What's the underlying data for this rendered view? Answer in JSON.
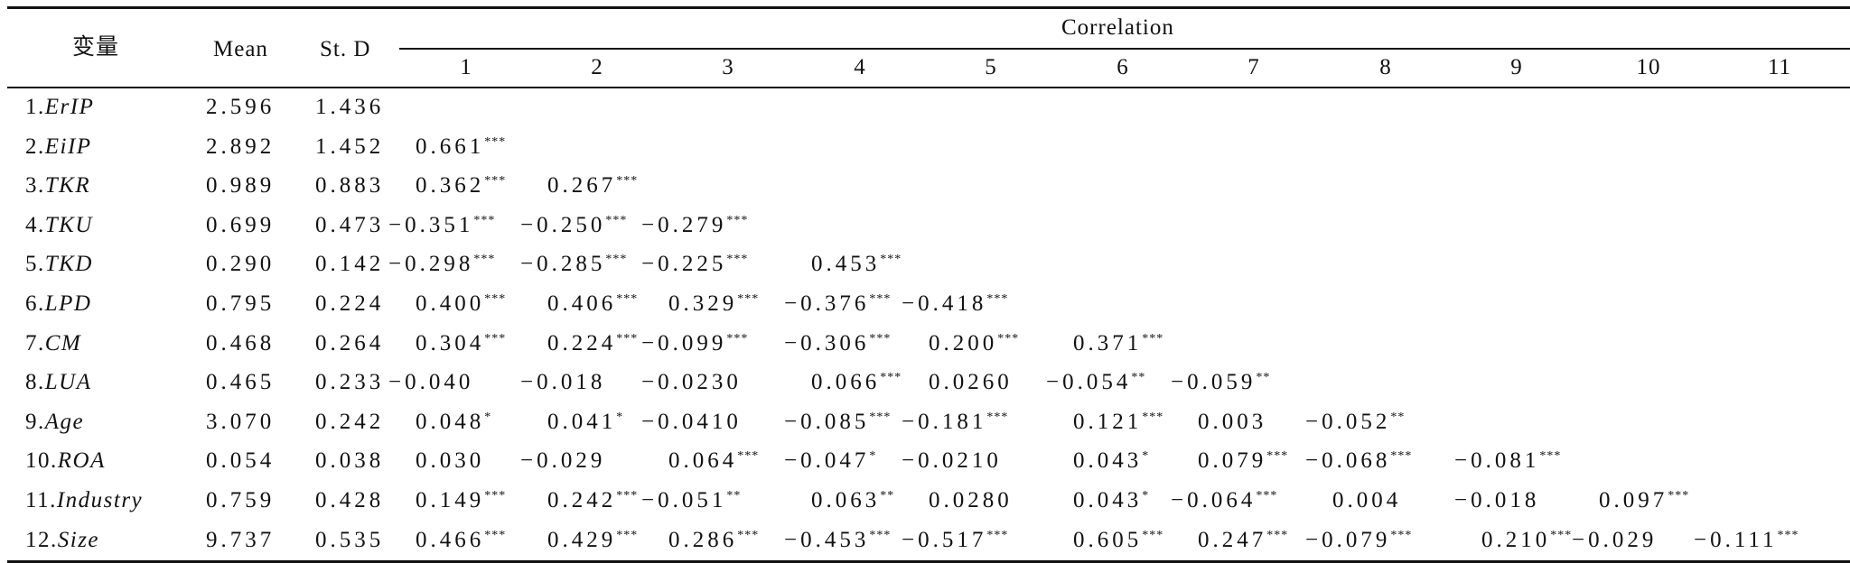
{
  "table": {
    "header": {
      "variable": "变量",
      "mean": "Mean",
      "sd": "St. D",
      "correlation": "Correlation",
      "cols": [
        "1",
        "2",
        "3",
        "4",
        "5",
        "6",
        "7",
        "8",
        "9",
        "10",
        "11"
      ]
    },
    "rows": [
      {
        "num": "1.",
        "name": "ErIP",
        "mean": "2.596",
        "sd": "1.436",
        "corr": []
      },
      {
        "num": "2.",
        "name": "EiIP",
        "mean": "2.892",
        "sd": "1.452",
        "corr": [
          {
            "v": "0.661",
            "s": "***"
          }
        ]
      },
      {
        "num": "3.",
        "name": "TKR",
        "mean": "0.989",
        "sd": "0.883",
        "corr": [
          {
            "v": "0.362",
            "s": "***"
          },
          {
            "v": "0.267",
            "s": "***"
          }
        ]
      },
      {
        "num": "4.",
        "name": "TKU",
        "mean": "0.699",
        "sd": "0.473",
        "corr": [
          {
            "v": "−0.351",
            "s": "***"
          },
          {
            "v": "−0.250",
            "s": "***"
          },
          {
            "v": "−0.279",
            "s": "***"
          }
        ]
      },
      {
        "num": "5.",
        "name": "TKD",
        "mean": "0.290",
        "sd": "0.142",
        "corr": [
          {
            "v": "−0.298",
            "s": "***"
          },
          {
            "v": "−0.285",
            "s": "***"
          },
          {
            "v": "−0.225",
            "s": "***"
          },
          {
            "v": "0.453",
            "s": "***"
          }
        ]
      },
      {
        "num": "6.",
        "name": "LPD",
        "mean": "0.795",
        "sd": "0.224",
        "corr": [
          {
            "v": "0.400",
            "s": "***"
          },
          {
            "v": "0.406",
            "s": "***"
          },
          {
            "v": "0.329",
            "s": "***"
          },
          {
            "v": "−0.376",
            "s": "***"
          },
          {
            "v": "−0.418",
            "s": "***"
          }
        ]
      },
      {
        "num": "7.",
        "name": "CM",
        "mean": "0.468",
        "sd": "0.264",
        "corr": [
          {
            "v": "0.304",
            "s": "***"
          },
          {
            "v": "0.224",
            "s": "***"
          },
          {
            "v": "−0.099",
            "s": "***"
          },
          {
            "v": "−0.306",
            "s": "***"
          },
          {
            "v": "0.200",
            "s": "***"
          },
          {
            "v": "0.371",
            "s": "***"
          }
        ]
      },
      {
        "num": "8.",
        "name": "LUA",
        "mean": "0.465",
        "sd": "0.233",
        "corr": [
          {
            "v": "−0.040",
            "s": ""
          },
          {
            "v": "−0.018",
            "s": ""
          },
          {
            "v": "−0.0230",
            "s": ""
          },
          {
            "v": "0.066",
            "s": "***"
          },
          {
            "v": "0.0260",
            "s": ""
          },
          {
            "v": "−0.054",
            "s": "**"
          },
          {
            "v": "−0.059",
            "s": "**"
          }
        ]
      },
      {
        "num": "9.",
        "name": "Age",
        "mean": "3.070",
        "sd": "0.242",
        "corr": [
          {
            "v": "0.048",
            "s": "*"
          },
          {
            "v": "0.041",
            "s": "*"
          },
          {
            "v": "−0.0410",
            "s": ""
          },
          {
            "v": "−0.085",
            "s": "***"
          },
          {
            "v": "−0.181",
            "s": "***"
          },
          {
            "v": "0.121",
            "s": "***"
          },
          {
            "v": "0.003",
            "s": ""
          },
          {
            "v": "−0.052",
            "s": "**"
          }
        ]
      },
      {
        "num": "10.",
        "name": "ROA",
        "mean": "0.054",
        "sd": "0.038",
        "corr": [
          {
            "v": "0.030",
            "s": ""
          },
          {
            "v": "−0.029",
            "s": ""
          },
          {
            "v": "0.064",
            "s": "***"
          },
          {
            "v": "−0.047",
            "s": "*"
          },
          {
            "v": "−0.0210",
            "s": ""
          },
          {
            "v": "0.043",
            "s": "*"
          },
          {
            "v": "0.079",
            "s": "***"
          },
          {
            "v": "−0.068",
            "s": "***"
          },
          {
            "v": "−0.081",
            "s": "***"
          }
        ]
      },
      {
        "num": "11.",
        "name": "Industry",
        "mean": "0.759",
        "sd": "0.428",
        "corr": [
          {
            "v": "0.149",
            "s": "***"
          },
          {
            "v": "0.242",
            "s": "***"
          },
          {
            "v": "−0.051",
            "s": "**"
          },
          {
            "v": "0.063",
            "s": "**"
          },
          {
            "v": "0.0280",
            "s": ""
          },
          {
            "v": "0.043",
            "s": "*"
          },
          {
            "v": "−0.064",
            "s": "***"
          },
          {
            "v": "0.004",
            "s": ""
          },
          {
            "v": "−0.018",
            "s": ""
          },
          {
            "v": "0.097",
            "s": "***"
          }
        ]
      },
      {
        "num": "12.",
        "name": "Size",
        "mean": "9.737",
        "sd": "0.535",
        "corr": [
          {
            "v": "0.466",
            "s": "***"
          },
          {
            "v": "0.429",
            "s": "***"
          },
          {
            "v": "0.286",
            "s": "***"
          },
          {
            "v": "−0.453",
            "s": "***"
          },
          {
            "v": "−0.517",
            "s": "***"
          },
          {
            "v": "0.605",
            "s": "***"
          },
          {
            "v": "0.247",
            "s": "***"
          },
          {
            "v": "−0.079",
            "s": "***"
          },
          {
            "v": "0.210",
            "s": "***"
          },
          {
            "v": "−0.029",
            "s": ""
          },
          {
            "v": "−0.111",
            "s": "***"
          }
        ]
      }
    ]
  }
}
